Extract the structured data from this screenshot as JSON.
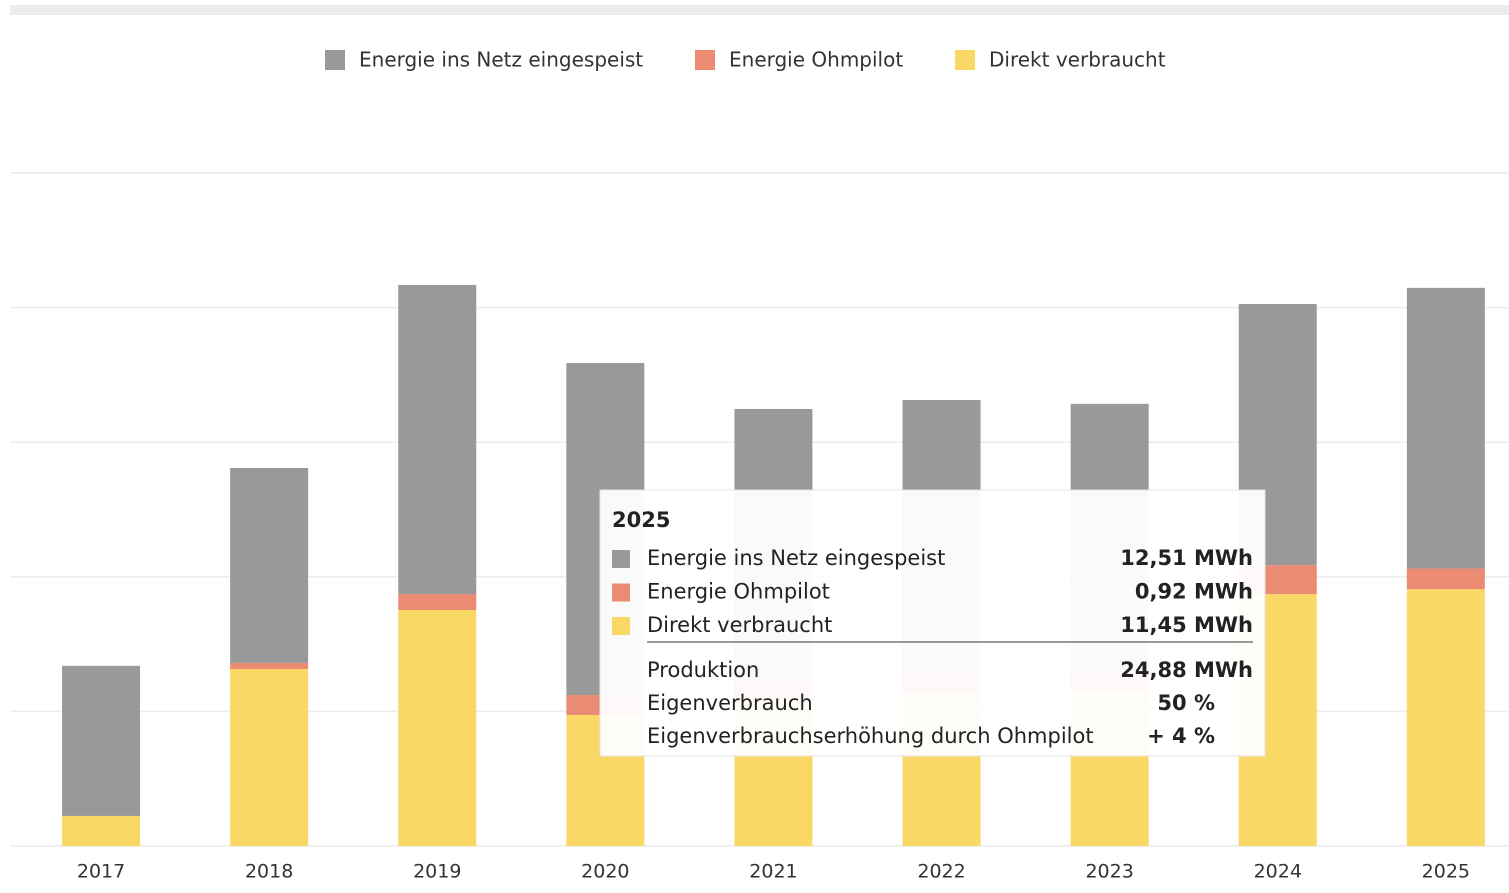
{
  "chart_data": {
    "type": "bar",
    "stacked": true,
    "categories": [
      "2017",
      "2018",
      "2019",
      "2020",
      "2021",
      "2022",
      "2023",
      "2024",
      "2025"
    ],
    "series": [
      {
        "name": "Energie ins Netz eingespeist",
        "color": "#999999",
        "values": [
          6.69,
          8.69,
          13.78,
          14.8,
          12.08,
          12.18,
          11.91,
          11.64,
          12.51
        ],
        "value_labels": [
          null,
          null,
          null,
          null,
          null,
          null,
          null,
          null,
          "12,51 MWh"
        ]
      },
      {
        "name": "Energie Ohmpilot",
        "color": "#ec8b73",
        "values": [
          0,
          0.27,
          0.71,
          0.89,
          0.9,
          0.9,
          0.9,
          1.29,
          0.92
        ],
        "value_labels": [
          null,
          null,
          null,
          null,
          null,
          null,
          null,
          null,
          "0,92 MWh"
        ]
      },
      {
        "name": "Direkt verbraucht",
        "color": "#f9d866",
        "values": [
          1.34,
          7.89,
          10.52,
          5.84,
          6.5,
          6.8,
          6.9,
          11.23,
          11.45
        ],
        "value_labels": [
          null,
          null,
          null,
          null,
          null,
          null,
          null,
          null,
          "11,45 MWh"
        ]
      }
    ],
    "ylim": [
      0,
      30
    ],
    "yticks": [
      0,
      6,
      12,
      18,
      24,
      30
    ],
    "grid": true,
    "legend": "top",
    "tooltip": {
      "category_index": 8,
      "rows": [
        {
          "label": "Produktion",
          "value": "24,88 MWh"
        },
        {
          "label": "Eigenverbrauch",
          "value": "50 %"
        },
        {
          "label": "Eigenverbrauchserhöhung durch Ohmpilot",
          "value": "+ 4 %"
        }
      ]
    }
  }
}
